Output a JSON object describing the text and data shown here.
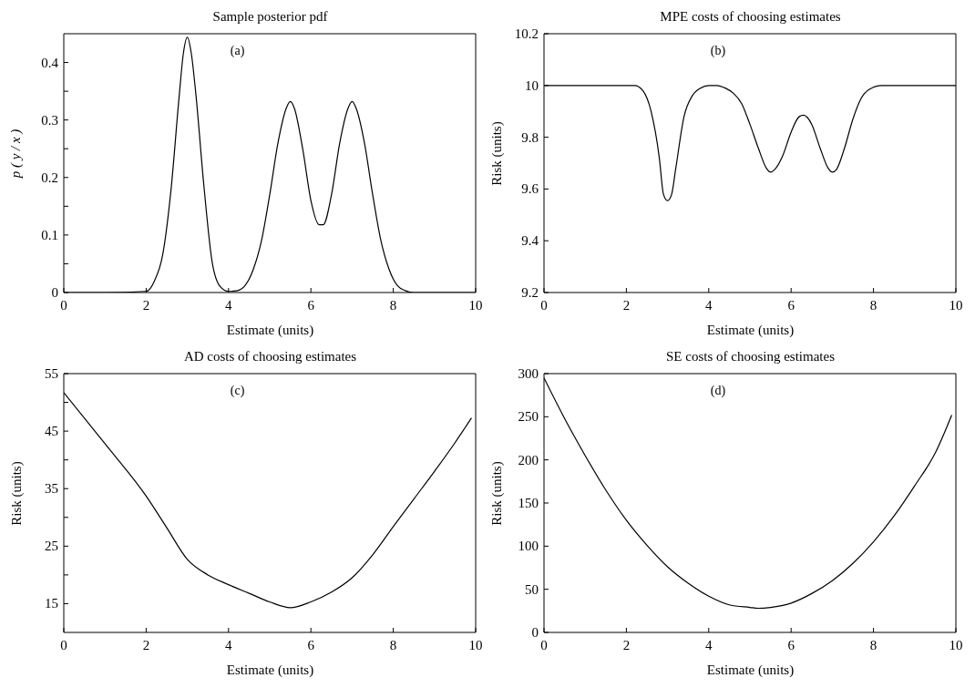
{
  "chart_data": [
    {
      "type": "line",
      "title": "Sample posterior pdf",
      "xlabel": "Estimate (units)",
      "ylabel": "p ( y / x )",
      "annotations": [
        "(a)"
      ],
      "color": "#000000",
      "x": [
        0,
        1,
        2,
        2.2,
        2.4,
        2.6,
        2.8,
        2.9,
        3,
        3.1,
        3.2,
        3.4,
        3.6,
        3.8,
        4,
        4.2,
        4.4,
        4.6,
        4.8,
        5,
        5.2,
        5.4,
        5.5,
        5.6,
        5.8,
        6,
        6.2,
        6.3,
        6.5,
        6.7,
        6.9,
        7,
        7.1,
        7.3,
        7.5,
        7.7,
        7.9,
        8.1,
        8.3,
        8.5,
        9,
        10
      ],
      "values": [
        0,
        0,
        0.002,
        0.02,
        0.065,
        0.176,
        0.34,
        0.414,
        0.444,
        0.414,
        0.35,
        0.187,
        0.054,
        0.01,
        0.002,
        0.003,
        0.012,
        0.04,
        0.09,
        0.17,
        0.26,
        0.32,
        0.332,
        0.32,
        0.25,
        0.16,
        0.118,
        0.118,
        0.17,
        0.26,
        0.32,
        0.332,
        0.32,
        0.26,
        0.17,
        0.09,
        0.04,
        0.012,
        0.003,
        0,
        0,
        0
      ],
      "xlim": [
        0,
        10
      ],
      "xticks": [
        0,
        2,
        4,
        6,
        8,
        10
      ],
      "ylim": [
        0,
        0.45
      ],
      "yticks": [
        0,
        {
          "value": 0.05,
          "label": null
        },
        0.1,
        {
          "value": 0.15,
          "label": null
        },
        0.2,
        {
          "value": 0.25,
          "label": null
        },
        0.3,
        {
          "value": 0.35,
          "label": null
        },
        0.4
      ]
    },
    {
      "type": "line",
      "title": "MPE costs of choosing estimates",
      "xlabel": "Estimate (units)",
      "ylabel": "Risk (units)",
      "annotations": [
        "(b)"
      ],
      "color": "#000000",
      "x": [
        0,
        1,
        2,
        2.2,
        2.4,
        2.6,
        2.8,
        2.9,
        3,
        3.1,
        3.2,
        3.4,
        3.6,
        3.8,
        4,
        4.2,
        4.4,
        4.6,
        4.8,
        5,
        5.2,
        5.4,
        5.5,
        5.6,
        5.8,
        6,
        6.2,
        6.3,
        6.5,
        6.7,
        6.9,
        7,
        7.1,
        7.3,
        7.5,
        7.7,
        7.9,
        8.2,
        9,
        10
      ],
      "values": [
        10,
        10,
        10,
        10,
        9.98,
        9.9,
        9.72,
        9.58,
        9.555,
        9.58,
        9.68,
        9.88,
        9.96,
        9.99,
        10,
        10,
        9.99,
        9.97,
        9.93,
        9.85,
        9.76,
        9.68,
        9.665,
        9.675,
        9.73,
        9.82,
        9.88,
        9.885,
        9.85,
        9.76,
        9.68,
        9.665,
        9.675,
        9.76,
        9.87,
        9.95,
        9.985,
        10,
        10,
        10
      ],
      "xlim": [
        0,
        10
      ],
      "xticks": [
        0,
        2,
        4,
        6,
        8,
        10
      ],
      "ylim": [
        9.2,
        10.2
      ],
      "yticks": [
        9.2,
        9.4,
        9.6,
        9.8,
        10,
        10.2
      ]
    },
    {
      "type": "line",
      "title": "AD costs of choosing estimates",
      "xlabel": "Estimate (units)",
      "ylabel": "Risk (units)",
      "annotations": [
        "(c)"
      ],
      "color": "#000000",
      "x": [
        0,
        1,
        2,
        2.5,
        3,
        3.5,
        4,
        4.5,
        5,
        5.5,
        6,
        6.5,
        7,
        7.5,
        8,
        8.5,
        9,
        9.5,
        9.9
      ],
      "values": [
        51.7,
        42.8,
        33.7,
        28.2,
        22.7,
        20,
        18.3,
        16.8,
        15.3,
        14.3,
        15.3,
        17,
        19.5,
        23.5,
        28.4,
        33.2,
        38,
        43,
        47.3
      ],
      "xlim": [
        0,
        10
      ],
      "xticks": [
        0,
        2,
        4,
        6,
        8,
        10
      ],
      "ylim": [
        10,
        55
      ],
      "yticks": [
        15,
        {
          "value": 20,
          "label": null
        },
        25,
        {
          "value": 30,
          "label": null
        },
        35,
        {
          "value": 40,
          "label": null
        },
        45,
        {
          "value": 50,
          "label": null
        },
        55
      ]
    },
    {
      "type": "line",
      "title": "SE costs of choosing estimates",
      "xlabel": "Estimate (units)",
      "ylabel": "Risk (units)",
      "annotations": [
        "(d)"
      ],
      "color": "#000000",
      "x": [
        0,
        0.5,
        1,
        1.5,
        2,
        2.5,
        3,
        3.5,
        4,
        4.5,
        5,
        5.2,
        5.5,
        6,
        6.5,
        7,
        7.5,
        8,
        8.5,
        9,
        9.5,
        9.9
      ],
      "values": [
        295,
        248,
        205,
        165,
        130,
        101,
        76,
        57,
        42,
        32,
        29,
        28,
        29,
        34,
        45,
        60,
        80,
        105,
        135,
        170,
        208,
        252
      ],
      "xlim": [
        0,
        10
      ],
      "xticks": [
        0,
        2,
        4,
        6,
        8,
        10
      ],
      "ylim": [
        0,
        300
      ],
      "yticks": [
        0,
        50,
        100,
        150,
        200,
        250,
        300
      ]
    }
  ]
}
